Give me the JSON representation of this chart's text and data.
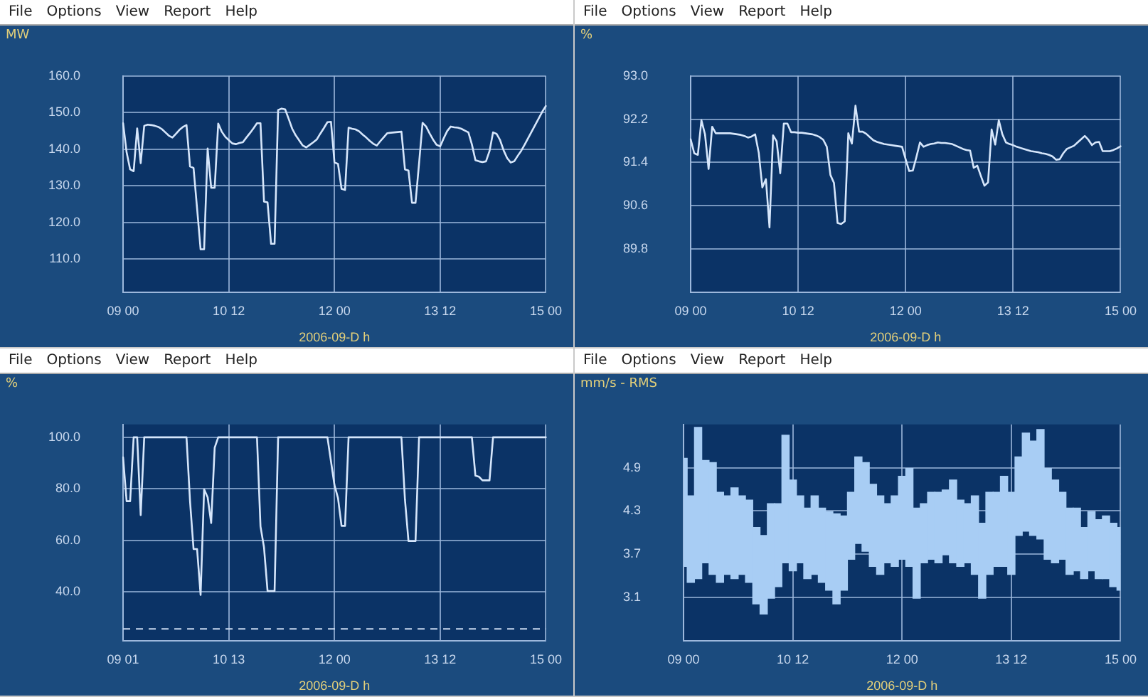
{
  "chart_data": [
    {
      "type": "line",
      "annotations": [
        "File",
        "Options",
        "View",
        "Report",
        "Help"
      ],
      "ylabel": "MW",
      "xlabel": "2006-09-D h",
      "color": "#d6e6fb",
      "marker": "none",
      "grid": true,
      "categories": [
        "09 00",
        null,
        null,
        null,
        null,
        null,
        null,
        null,
        null,
        null,
        null,
        null,
        null,
        null,
        null,
        null,
        null,
        null,
        null,
        null,
        null,
        null,
        null,
        null,
        null,
        null,
        null,
        null,
        null,
        null,
        "10 12",
        null,
        null,
        null,
        null,
        null,
        null,
        null,
        null,
        null,
        null,
        null,
        null,
        null,
        null,
        null,
        null,
        null,
        null,
        null,
        null,
        null,
        null,
        null,
        null,
        null,
        null,
        null,
        null,
        null,
        "12 00",
        null,
        null,
        null,
        null,
        null,
        null,
        null,
        null,
        null,
        null,
        null,
        null,
        null,
        null,
        null,
        null,
        null,
        null,
        null,
        null,
        null,
        null,
        null,
        null,
        null,
        null,
        null,
        null,
        null,
        "13 12",
        null,
        null,
        null,
        null,
        null,
        null,
        null,
        null,
        null,
        null,
        null,
        null,
        null,
        null,
        null,
        null,
        null,
        null,
        null,
        null,
        null,
        null,
        null,
        null,
        null,
        null,
        null,
        null,
        null,
        "15 00"
      ],
      "values": [
        147.1,
        139.2,
        134.5,
        134.0,
        145.7,
        136.2,
        146.4,
        146.7,
        146.6,
        146.4,
        146.1,
        145.5,
        144.6,
        143.7,
        143.2,
        144.2,
        145.3,
        146.1,
        146.6,
        135.3,
        134.9,
        123.9,
        112.7,
        112.7,
        140.2,
        129.5,
        129.5,
        147.0,
        144.8,
        143.4,
        142.5,
        141.6,
        141.4,
        141.7,
        141.9,
        143.2,
        144.4,
        145.7,
        147.1,
        147.1,
        125.7,
        125.5,
        114.2,
        114.2,
        150.7,
        151.1,
        150.9,
        148.3,
        145.6,
        143.8,
        142.4,
        141.0,
        140.5,
        141.2,
        141.9,
        142.7,
        144.3,
        145.8,
        147.4,
        147.5,
        136.4,
        136.0,
        129.2,
        128.9,
        145.9,
        145.6,
        145.4,
        144.9,
        144.0,
        143.2,
        142.3,
        141.5,
        141.0,
        142.2,
        143.3,
        144.4,
        144.5,
        144.6,
        144.7,
        144.8,
        134.5,
        134.2,
        125.4,
        125.4,
        136.1,
        147.2,
        146.2,
        144.3,
        142.6,
        141.2,
        140.8,
        143.0,
        145.0,
        146.2,
        146.0,
        145.9,
        145.6,
        145.1,
        144.6,
        141.3,
        137.0,
        136.7,
        136.5,
        136.7,
        139.5,
        144.6,
        144.2,
        142.5,
        139.7,
        137.6,
        136.4,
        136.7,
        138.2,
        139.6,
        141.3,
        143.1,
        144.9,
        146.7,
        148.5,
        150.3,
        151.8
      ],
      "ylim": [
        101,
        160
      ],
      "yticks": [
        {
          "value": 110,
          "label": "110.0"
        },
        {
          "value": 120,
          "label": "120.0"
        },
        {
          "value": 130,
          "label": "130.0"
        },
        {
          "value": 140,
          "label": "140.0"
        },
        {
          "value": 150,
          "label": "150.0"
        },
        {
          "value": 160,
          "label": "160.0"
        }
      ]
    },
    {
      "type": "line",
      "annotations": [
        "File",
        "Options",
        "View",
        "Report",
        "Help"
      ],
      "ylabel": "%",
      "xlabel": "2006-09-D h",
      "color": "#d6e6fb",
      "marker": "none",
      "grid": true,
      "categories": [
        "09 00",
        null,
        null,
        null,
        null,
        null,
        null,
        null,
        null,
        null,
        null,
        null,
        null,
        null,
        null,
        null,
        null,
        null,
        null,
        null,
        null,
        null,
        null,
        null,
        null,
        null,
        null,
        null,
        null,
        null,
        "10 12",
        null,
        null,
        null,
        null,
        null,
        null,
        null,
        null,
        null,
        null,
        null,
        null,
        null,
        null,
        null,
        null,
        null,
        null,
        null,
        null,
        null,
        null,
        null,
        null,
        null,
        null,
        null,
        null,
        null,
        "12 00",
        null,
        null,
        null,
        null,
        null,
        null,
        null,
        null,
        null,
        null,
        null,
        null,
        null,
        null,
        null,
        null,
        null,
        null,
        null,
        null,
        null,
        null,
        null,
        null,
        null,
        null,
        null,
        null,
        null,
        "13 12",
        null,
        null,
        null,
        null,
        null,
        null,
        null,
        null,
        null,
        null,
        null,
        null,
        null,
        null,
        null,
        null,
        null,
        null,
        null,
        null,
        null,
        null,
        null,
        null,
        null,
        null,
        null,
        null,
        null,
        "15 00"
      ],
      "values": [
        91.83,
        91.57,
        91.54,
        92.18,
        91.92,
        91.28,
        92.06,
        91.94,
        91.94,
        91.94,
        91.94,
        91.94,
        91.93,
        91.92,
        91.91,
        91.89,
        91.86,
        91.88,
        91.92,
        91.58,
        90.94,
        91.09,
        90.2,
        91.9,
        91.79,
        91.2,
        92.12,
        92.12,
        91.96,
        91.96,
        91.95,
        91.95,
        91.94,
        91.93,
        91.92,
        91.9,
        91.87,
        91.82,
        91.69,
        91.17,
        91.02,
        90.28,
        90.26,
        90.31,
        91.94,
        91.75,
        92.45,
        91.97,
        91.97,
        91.93,
        91.87,
        91.81,
        91.78,
        91.76,
        91.74,
        91.73,
        91.72,
        91.71,
        91.7,
        91.69,
        91.46,
        91.24,
        91.25,
        91.5,
        91.77,
        91.69,
        91.72,
        91.74,
        91.75,
        91.77,
        91.76,
        91.76,
        91.75,
        91.74,
        91.71,
        91.68,
        91.65,
        91.63,
        91.62,
        91.3,
        91.34,
        91.15,
        90.97,
        91.03,
        92.01,
        91.73,
        92.18,
        91.92,
        91.77,
        91.74,
        91.72,
        91.69,
        91.67,
        91.65,
        91.63,
        91.61,
        91.6,
        91.59,
        91.57,
        91.56,
        91.54,
        91.51,
        91.45,
        91.46,
        91.57,
        91.65,
        91.68,
        91.71,
        91.77,
        91.83,
        91.89,
        91.82,
        91.72,
        91.77,
        91.78,
        91.61,
        91.61,
        91.61,
        91.63,
        91.66,
        91.7
      ],
      "ylim": [
        89.0,
        93.0
      ],
      "yticks": [
        89.8,
        90.6,
        91.4,
        92.2,
        {
          "value": 93,
          "label": "93.0"
        }
      ]
    },
    {
      "type": "line",
      "annotations": [
        "File",
        "Options",
        "View",
        "Report",
        "Help"
      ],
      "ylabel": "%",
      "xlabel": "2006-09-D h",
      "color": "#d6e6fb",
      "marker": "none",
      "grid": true,
      "categories": [
        "09 01",
        null,
        null,
        null,
        null,
        null,
        null,
        null,
        null,
        null,
        null,
        null,
        null,
        null,
        null,
        null,
        null,
        null,
        null,
        null,
        null,
        null,
        null,
        null,
        null,
        null,
        null,
        null,
        null,
        null,
        "10 13",
        null,
        null,
        null,
        null,
        null,
        null,
        null,
        null,
        null,
        null,
        null,
        null,
        null,
        null,
        null,
        null,
        null,
        null,
        null,
        null,
        null,
        null,
        null,
        null,
        null,
        null,
        null,
        null,
        null,
        "12 00",
        null,
        null,
        null,
        null,
        null,
        null,
        null,
        null,
        null,
        null,
        null,
        null,
        null,
        null,
        null,
        null,
        null,
        null,
        null,
        null,
        null,
        null,
        null,
        null,
        null,
        null,
        null,
        null,
        null,
        "13 12",
        null,
        null,
        null,
        null,
        null,
        null,
        null,
        null,
        null,
        null,
        null,
        null,
        null,
        null,
        null,
        null,
        null,
        null,
        null,
        null,
        null,
        null,
        null,
        null,
        null,
        null,
        null,
        null,
        null,
        "15 00"
      ],
      "values": [
        92.2,
        75.2,
        75.2,
        100.0,
        100.0,
        69.8,
        100.0,
        100.0,
        100.0,
        100.0,
        100.0,
        100.0,
        100.0,
        100.0,
        100.0,
        100.0,
        100.0,
        100.0,
        100.0,
        75.2,
        56.6,
        56.6,
        38.8,
        79.8,
        76.7,
        66.7,
        96.0,
        100.0,
        100.0,
        100.0,
        100.0,
        100.0,
        100.0,
        100.0,
        100.0,
        100.0,
        100.0,
        100.0,
        100.0,
        65.4,
        57.2,
        40.3,
        40.3,
        40.3,
        100.0,
        100.0,
        100.0,
        100.0,
        100.0,
        100.0,
        100.0,
        100.0,
        100.0,
        100.0,
        100.0,
        100.0,
        100.0,
        100.0,
        100.0,
        90.7,
        81.4,
        76.4,
        65.6,
        65.6,
        100.0,
        100.0,
        100.0,
        100.0,
        100.0,
        100.0,
        100.0,
        100.0,
        100.0,
        100.0,
        100.0,
        100.0,
        100.0,
        100.0,
        100.0,
        100.0,
        75.8,
        59.7,
        59.7,
        59.7,
        100.0,
        100.0,
        100.0,
        100.0,
        100.0,
        100.0,
        100.0,
        100.0,
        100.0,
        100.0,
        100.0,
        100.0,
        100.0,
        100.0,
        100.0,
        100.0,
        85.1,
        84.7,
        83.3,
        83.3,
        83.3,
        100.0,
        100.0,
        100.0,
        100.0,
        100.0,
        100.0,
        100.0,
        100.0,
        100.0,
        100.0,
        100.0,
        100.0,
        100.0,
        100.0,
        100.0,
        100.0
      ],
      "ref_lines": [
        {
          "axis": "y",
          "value": 25.6,
          "color": "#c9d9ef",
          "line_style": "dashed"
        }
      ],
      "ylim": [
        21,
        105
      ],
      "yticks": [
        {
          "value": 40,
          "label": "40.0"
        },
        {
          "value": 60,
          "label": "60.0"
        },
        {
          "value": 80,
          "label": "80.0"
        },
        {
          "value": 100,
          "label": "100.0"
        }
      ]
    },
    {
      "type": "bar",
      "annotations": [
        "File",
        "Options",
        "View",
        "Report",
        "Help"
      ],
      "ylabel": "mm/s - RMS",
      "xlabel": "2006-09-D h",
      "color": "#a8cdf4",
      "grid": true,
      "categories": [
        "09 00",
        null,
        null,
        null,
        null,
        null,
        null,
        null,
        null,
        null,
        null,
        null,
        null,
        null,
        null,
        "10 12",
        null,
        null,
        null,
        null,
        null,
        null,
        null,
        null,
        null,
        null,
        null,
        null,
        null,
        null,
        "12 00",
        null,
        null,
        null,
        null,
        null,
        null,
        null,
        null,
        null,
        null,
        null,
        null,
        null,
        null,
        "13 12",
        null,
        null,
        null,
        null,
        null,
        null,
        null,
        null,
        null,
        null,
        null,
        null,
        null,
        null,
        "15 00"
      ],
      "base": [
        3.53,
        3.31,
        3.36,
        3.58,
        3.42,
        3.31,
        3.42,
        3.36,
        3.42,
        3.31,
        3.01,
        2.87,
        3.09,
        3.25,
        3.58,
        3.47,
        3.58,
        3.36,
        3.42,
        3.31,
        3.2,
        3.01,
        3.2,
        3.63,
        3.85,
        3.74,
        3.53,
        3.42,
        3.58,
        3.53,
        3.63,
        3.53,
        3.09,
        3.58,
        3.63,
        3.58,
        3.69,
        3.58,
        3.53,
        3.58,
        3.42,
        3.09,
        3.42,
        3.53,
        3.53,
        3.42,
        3.96,
        4.02,
        3.96,
        3.91,
        3.63,
        3.58,
        3.63,
        3.42,
        3.47,
        3.36,
        3.47,
        3.36,
        3.36,
        3.25,
        3.2
      ],
      "values": [
        1.5,
        1.2,
        2.1,
        1.42,
        1.55,
        1.25,
        1.09,
        1.26,
        1.09,
        1.14,
        1.06,
        1.09,
        1.31,
        1.15,
        1.77,
        1.26,
        0.93,
        0.98,
        1.09,
        1.03,
        1.09,
        1.25,
        1.03,
        0.93,
        1.2,
        1.23,
        1.14,
        1.09,
        0.82,
        0.98,
        1.15,
        1.36,
        1.25,
        0.82,
        0.93,
        0.98,
        0.9,
        1.15,
        0.92,
        0.82,
        1.09,
        1.04,
        1.14,
        1.03,
        1.25,
        1.14,
        1.09,
        1.36,
        1.31,
        1.52,
        1.26,
        1.15,
        0.93,
        0.92,
        0.87,
        0.71,
        0.82,
        0.82,
        0.87,
        0.88,
        0.87
      ],
      "ylim": [
        2.5,
        5.5
      ],
      "yticks": [
        3.1,
        3.7,
        4.3,
        4.9
      ]
    }
  ]
}
